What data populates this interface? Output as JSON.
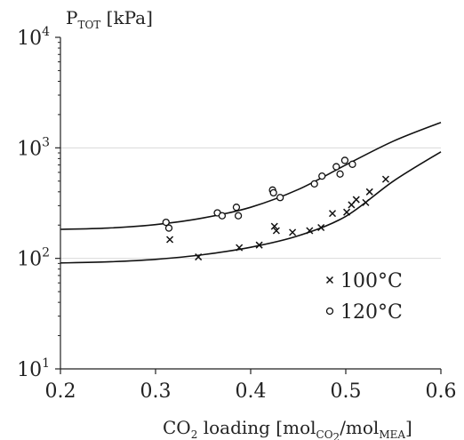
{
  "chart_data": {
    "type": "scatter",
    "title": "",
    "y_axis_label": {
      "main": "P",
      "sub": "TOT",
      "rest": " [kPa]"
    },
    "x_axis_label": {
      "prefix_main": "CO",
      "prefix_sub": "2",
      "middle": " loading [mol",
      "sub1": "CO",
      "sub1b": "2",
      "slash": "/mol",
      "sub2": "MEA",
      "end": "]"
    },
    "xlim": [
      0.2,
      0.6
    ],
    "ylim": [
      10,
      10000
    ],
    "yscale": "log",
    "x_ticks": [
      "0.2",
      "0.3",
      "0.4",
      "0.5",
      "0.6"
    ],
    "y_ticks": [
      {
        "value": 10,
        "base": "10",
        "exp": "1"
      },
      {
        "value": 100,
        "base": "10",
        "exp": "2"
      },
      {
        "value": 1000,
        "base": "10",
        "exp": "3"
      },
      {
        "value": 10000,
        "base": "10",
        "exp": "4"
      }
    ],
    "grid": "horizontal at 10^2, 10^3",
    "legend": {
      "placement": "lower-right",
      "entries": [
        {
          "marker": "×",
          "label": "100°C"
        },
        {
          "marker": "○",
          "label": "120°C"
        }
      ]
    },
    "series": [
      {
        "name": "100°C",
        "marker": "x",
        "points": [
          [
            0.315,
            148
          ],
          [
            0.345,
            103
          ],
          [
            0.388,
            125
          ],
          [
            0.409,
            132
          ],
          [
            0.425,
            195
          ],
          [
            0.427,
            178
          ],
          [
            0.444,
            172
          ],
          [
            0.462,
            178
          ],
          [
            0.474,
            190
          ],
          [
            0.486,
            255
          ],
          [
            0.501,
            262
          ],
          [
            0.506,
            305
          ],
          [
            0.511,
            340
          ],
          [
            0.521,
            320
          ],
          [
            0.525,
            400
          ],
          [
            0.542,
            520
          ]
        ]
      },
      {
        "name": "120°C",
        "marker": "o",
        "points": [
          [
            0.311,
            212
          ],
          [
            0.314,
            188
          ],
          [
            0.365,
            258
          ],
          [
            0.37,
            243
          ],
          [
            0.385,
            290
          ],
          [
            0.387,
            243
          ],
          [
            0.423,
            415
          ],
          [
            0.424,
            392
          ],
          [
            0.431,
            355
          ],
          [
            0.467,
            472
          ],
          [
            0.475,
            555
          ],
          [
            0.49,
            675
          ],
          [
            0.494,
            580
          ],
          [
            0.499,
            770
          ],
          [
            0.507,
            710
          ]
        ]
      }
    ],
    "curves": [
      {
        "points": [
          [
            0.2,
            91
          ],
          [
            0.25,
            93
          ],
          [
            0.3,
            98
          ],
          [
            0.35,
            108
          ],
          [
            0.4,
            126
          ],
          [
            0.45,
            160
          ],
          [
            0.5,
            240
          ],
          [
            0.55,
            500
          ],
          [
            0.6,
            920
          ]
        ]
      },
      {
        "points": [
          [
            0.2,
            183
          ],
          [
            0.25,
            188
          ],
          [
            0.3,
            202
          ],
          [
            0.35,
            232
          ],
          [
            0.4,
            290
          ],
          [
            0.45,
            420
          ],
          [
            0.5,
            700
          ],
          [
            0.55,
            1150
          ],
          [
            0.6,
            1700
          ]
        ]
      }
    ]
  }
}
